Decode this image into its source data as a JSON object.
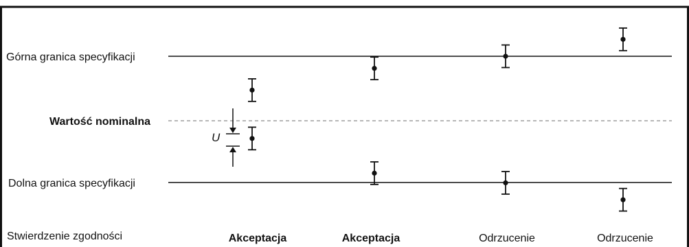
{
  "labels": {
    "upper_limit": "Górna granica specyfikacji",
    "nominal": "Wartość nominalna",
    "lower_limit": "Dolna granica specyfikacji",
    "uncertainty": "U",
    "conformity_row": "Stwierdzenie zgodności"
  },
  "decisions": [
    "Akceptacja",
    "Akceptacja",
    "Odrzucenie",
    "Odrzucenie"
  ],
  "cases": [
    {
      "decision_index": 0,
      "bars": [
        {
          "value": 0.38,
          "u": 0.14
        },
        {
          "value": -0.22,
          "u": 0.14
        }
      ]
    },
    {
      "decision_index": 1,
      "bars": [
        {
          "value": 0.65,
          "u": 0.14
        },
        {
          "value": -0.65,
          "u": 0.14
        }
      ]
    },
    {
      "decision_index": 2,
      "bars": [
        {
          "value": 0.8,
          "u": 0.14
        },
        {
          "value": -0.77,
          "u": 0.14
        }
      ]
    },
    {
      "decision_index": 3,
      "bars": [
        {
          "value": 1.01,
          "u": 0.14
        },
        {
          "value": -0.98,
          "u": 0.14
        }
      ]
    }
  ],
  "colors": {
    "line": "#111111",
    "dashed": "#8a8a8a"
  }
}
